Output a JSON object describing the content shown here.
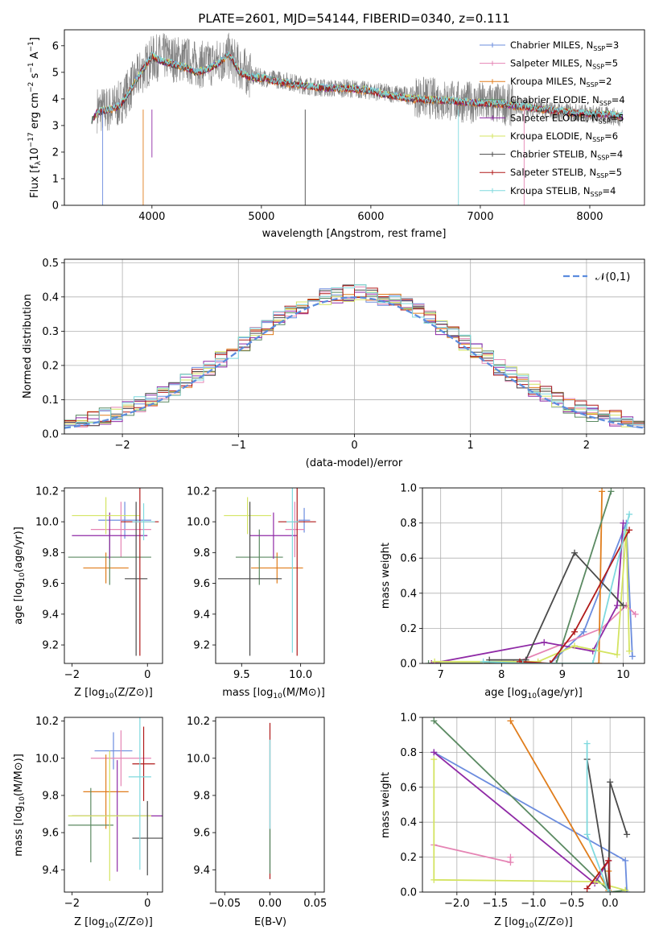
{
  "figure_title": "PLATE=2601, MJD=54144, FIBERID=0340, z=0.111",
  "palette": [
    "#6b8cde",
    "#e584b4",
    "#e07d1c",
    "#5b8a62",
    "#8f2aa6",
    "#d4e462",
    "#4a4a4a",
    "#b01a1a",
    "#7fd9de"
  ],
  "chart_data": [
    {
      "id": "spectrum",
      "type": "line",
      "title": "PLATE=2601, MJD=54144, FIBERID=0340, z=0.111",
      "xlabel": "wavelength [Angstrom, rest frame]",
      "ylabel": "Flux [f_λ 10^-17 erg cm^-2 s^-1 A^-1]",
      "xlim": [
        3200,
        8500
      ],
      "ylim": [
        0,
        6.6
      ],
      "xticks": [
        4000,
        5000,
        6000,
        7000,
        8000
      ],
      "yticks": [
        0,
        1,
        2,
        3,
        4,
        5,
        6
      ],
      "legend_position": "upper right",
      "data_trace": {
        "color": "#808080",
        "x": [
          3500,
          3600,
          3700,
          3800,
          3900,
          4000,
          4100,
          4200,
          4300,
          4400,
          4500,
          4600,
          4700,
          4800,
          4900,
          5000,
          5200,
          5400,
          5600,
          5800,
          6000,
          6200,
          6400,
          6600,
          6800,
          7000,
          7200,
          7400,
          7600,
          7800,
          8000,
          8200,
          8300
        ],
        "y": [
          3.6,
          3.6,
          3.8,
          4.4,
          5.0,
          5.5,
          5.6,
          5.5,
          5.5,
          5.3,
          5.3,
          5.4,
          5.6,
          5.2,
          4.9,
          4.8,
          4.7,
          4.5,
          4.4,
          4.4,
          4.3,
          4.2,
          4.1,
          4.0,
          3.9,
          3.85,
          3.8,
          3.7,
          3.6,
          3.5,
          3.45,
          3.35,
          3.3
        ]
      },
      "model": {
        "x": [
          3450,
          3500,
          3600,
          3700,
          3800,
          3900,
          4000,
          4100,
          4200,
          4300,
          4400,
          4500,
          4600,
          4700,
          4800,
          4900,
          5000,
          5200,
          5400,
          5600,
          5800,
          6000,
          6200,
          6400,
          6600,
          6800,
          7000,
          7200,
          7400,
          7600,
          7800,
          8000,
          8200,
          8300
        ],
        "y": [
          3.2,
          3.5,
          3.6,
          3.7,
          4.3,
          5.0,
          5.6,
          5.4,
          5.3,
          5.2,
          5.0,
          5.1,
          5.3,
          5.7,
          5.0,
          4.8,
          4.8,
          4.6,
          4.5,
          4.4,
          4.4,
          4.3,
          4.1,
          4.0,
          3.95,
          3.9,
          3.85,
          3.8,
          3.7,
          3.6,
          3.5,
          3.45,
          3.4,
          3.35
        ]
      },
      "series": [
        {
          "name": "Chabrier MILES, N_SSP=3",
          "color": "#6b8cde",
          "offset": 0.02
        },
        {
          "name": "Salpeter MILES, N_SSP=5",
          "color": "#e584b4",
          "offset": 0.0
        },
        {
          "name": "Kroupa MILES, N_SSP=2",
          "color": "#e07d1c",
          "offset": -0.03
        },
        {
          "name": "Chabrier ELODIE, N_SSP=4",
          "color": "#5b8a62",
          "offset": 0.01
        },
        {
          "name": "Salpeter ELODIE, N_SSP=5",
          "color": "#8f2aa6",
          "offset": -0.01
        },
        {
          "name": "Kroupa ELODIE, N_SSP=6",
          "color": "#d4e462",
          "offset": 0.03
        },
        {
          "name": "Chabrier STELIB, N_SSP=4",
          "color": "#4a4a4a",
          "offset": -0.02
        },
        {
          "name": "Salpeter STELIB, N_SSP=5",
          "color": "#b01a1a",
          "offset": 0.0
        },
        {
          "name": "Kroupa STELIB, N_SSP=4",
          "color": "#7fd9de",
          "offset": 0.04
        }
      ]
    },
    {
      "id": "residuals",
      "type": "histogram",
      "xlabel": "(data-model)/error",
      "ylabel": "Normed distribution",
      "xlim": [
        -2.5,
        2.5
      ],
      "ylim": [
        0,
        0.51
      ],
      "xticks": [
        -2,
        -1,
        0,
        1,
        2
      ],
      "yticks": [
        0.0,
        0.1,
        0.2,
        0.3,
        0.4,
        0.5
      ],
      "grid": true,
      "bin_width": 0.1,
      "reference_curve": {
        "name": "𝒩(0,1)",
        "color": "#5b8cde",
        "style": "dashed",
        "legend_position": "upper right"
      }
    },
    {
      "id": "age_vs_Z",
      "type": "errorbar",
      "xlabel": "Z [log10(Z/Z⊙)]",
      "ylabel": "age  [log10(age/yr)]",
      "xlim": [
        -2.2,
        0.4
      ],
      "ylim": [
        9.08,
        10.22
      ],
      "xticks": [
        -2,
        0
      ],
      "yticks": [
        9.2,
        9.4,
        9.6,
        9.8,
        10.0,
        10.2
      ],
      "points": [
        {
          "x": -0.6,
          "y": 10.01,
          "xerr": 0.7,
          "yerr": 0.12,
          "color": "#6b8cde"
        },
        {
          "x": -0.7,
          "y": 9.95,
          "xerr": 0.8,
          "yerr": 0.18,
          "color": "#e584b4"
        },
        {
          "x": -1.1,
          "y": 9.7,
          "xerr": 0.6,
          "yerr": 0.1,
          "color": "#e07d1c"
        },
        {
          "x": -1.0,
          "y": 9.77,
          "xerr": 1.1,
          "yerr": 0.18,
          "color": "#5b8a62"
        },
        {
          "x": -1.0,
          "y": 9.91,
          "xerr": 1.0,
          "yerr": 0.15,
          "color": "#8f2aa6"
        },
        {
          "x": -1.1,
          "y": 10.04,
          "xerr": 0.9,
          "yerr": 0.12,
          "color": "#d4e462"
        },
        {
          "x": -0.3,
          "y": 9.63,
          "xerr": 0.3,
          "yerr": 0.5,
          "color": "#4a4a4a"
        },
        {
          "x": -0.2,
          "y": 10.0,
          "xerr": 0.5,
          "yerr": 0.87,
          "color": "#b01a1a"
        },
        {
          "x": -0.1,
          "y": 10.0,
          "xerr": 0.3,
          "yerr": 0.12,
          "color": "#7fd9de"
        }
      ]
    },
    {
      "id": "age_vs_mass",
      "type": "errorbar",
      "xlabel": "mass [log10(M/M⊙)]",
      "ylabel": "",
      "xlim": [
        9.28,
        10.2
      ],
      "ylim": [
        9.08,
        10.22
      ],
      "xticks": [
        9.5,
        10.0
      ],
      "yticks": [
        9.2,
        9.4,
        9.6,
        9.8,
        10.0,
        10.2
      ],
      "points": [
        {
          "x": 10.03,
          "y": 10.01,
          "xerr": 0.05,
          "yerr": 0.08,
          "color": "#6b8cde"
        },
        {
          "x": 9.95,
          "y": 9.95,
          "xerr": 0.08,
          "yerr": 0.18,
          "color": "#e584b4"
        },
        {
          "x": 9.8,
          "y": 9.7,
          "xerr": 0.22,
          "yerr": 0.1,
          "color": "#e07d1c"
        },
        {
          "x": 9.65,
          "y": 9.77,
          "xerr": 0.2,
          "yerr": 0.18,
          "color": "#5b8a62"
        },
        {
          "x": 9.77,
          "y": 9.91,
          "xerr": 0.2,
          "yerr": 0.15,
          "color": "#8f2aa6"
        },
        {
          "x": 9.55,
          "y": 10.04,
          "xerr": 0.2,
          "yerr": 0.12,
          "color": "#d4e462"
        },
        {
          "x": 9.57,
          "y": 9.63,
          "xerr": 0.27,
          "yerr": 0.5,
          "color": "#4a4a4a"
        },
        {
          "x": 9.97,
          "y": 10.0,
          "xerr": 0.16,
          "yerr": 0.87,
          "color": "#b01a1a"
        },
        {
          "x": 9.93,
          "y": 10.0,
          "xerr": 0.05,
          "yerr": 0.85,
          "color": "#7fd9de"
        }
      ]
    },
    {
      "id": "massweight_vs_age",
      "type": "line",
      "xlabel": "age  [log10(age/yr)]",
      "ylabel": "mass weight",
      "xlim": [
        6.7,
        10.35
      ],
      "ylim": [
        0,
        1.0
      ],
      "xticks": [
        7,
        8,
        9,
        10
      ],
      "yticks": [
        0.0,
        0.2,
        0.4,
        0.6,
        0.8,
        1.0
      ],
      "grid": true,
      "series": [
        {
          "color": "#6b8cde",
          "x": [
            8.8,
            9.35,
            10.05,
            10.15
          ],
          "y": [
            0.0,
            0.18,
            0.8,
            0.04
          ]
        },
        {
          "color": "#e584b4",
          "x": [
            8.2,
            9.65,
            10.05,
            10.2
          ],
          "y": [
            0.0,
            0.2,
            0.33,
            0.28
          ]
        },
        {
          "color": "#e07d1c",
          "x": [
            6.85,
            9.6,
            9.65
          ],
          "y": [
            0.0,
            0.0,
            0.98
          ]
        },
        {
          "color": "#5b8a62",
          "x": [
            6.8,
            8.9,
            9.8
          ],
          "y": [
            0.0,
            0.0,
            0.98
          ]
        },
        {
          "color": "#8f2aa6",
          "x": [
            6.85,
            8.7,
            9.5,
            9.9,
            10.0
          ],
          "y": [
            0.0,
            0.12,
            0.07,
            0.33,
            0.8
          ]
        },
        {
          "color": "#d4e462",
          "x": [
            6.9,
            8.6,
            9.2,
            9.9,
            10.05,
            10.1
          ],
          "y": [
            0.01,
            0.01,
            0.1,
            0.05,
            0.76,
            0.07
          ]
        },
        {
          "color": "#4a4a4a",
          "x": [
            7.8,
            8.4,
            9.2,
            10.0
          ],
          "y": [
            0.02,
            0.02,
            0.63,
            0.33
          ]
        },
        {
          "color": "#b01a1a",
          "x": [
            8.3,
            8.8,
            9.2,
            10.1
          ],
          "y": [
            0.01,
            0.0,
            0.18,
            0.76
          ]
        },
        {
          "color": "#7fd9de",
          "x": [
            7.7,
            8.35,
            9.5,
            10.1
          ],
          "y": [
            0.01,
            0.0,
            0.0,
            0.85
          ]
        }
      ]
    },
    {
      "id": "mass_vs_Z",
      "type": "errorbar",
      "xlabel": "Z [log10(Z/Z⊙)]",
      "ylabel": "mass [log10(M/M⊙)]",
      "xlim": [
        -2.2,
        0.4
      ],
      "ylim": [
        9.28,
        10.22
      ],
      "xticks": [
        -2,
        0
      ],
      "yticks": [
        9.4,
        9.6,
        9.8,
        10.0,
        10.2
      ],
      "points": [
        {
          "x": -0.9,
          "y": 10.04,
          "xerr": 0.5,
          "yerr": 0.1,
          "color": "#6b8cde"
        },
        {
          "x": -0.7,
          "y": 10.0,
          "xerr": 0.8,
          "yerr": 0.15,
          "color": "#e584b4"
        },
        {
          "x": -1.1,
          "y": 9.82,
          "xerr": 0.6,
          "yerr": 0.2,
          "color": "#e07d1c"
        },
        {
          "x": -1.5,
          "y": 9.64,
          "xerr": 0.6,
          "yerr": 0.2,
          "color": "#5b8a62"
        },
        {
          "x": -0.8,
          "y": 9.69,
          "xerr": 1.2,
          "yerr": 0.3,
          "color": "#8f2aa6"
        },
        {
          "x": -1.0,
          "y": 9.69,
          "xerr": 1.1,
          "yerr": 0.35,
          "color": "#d4e462"
        },
        {
          "x": 0.0,
          "y": 9.57,
          "xerr": 0.4,
          "yerr": 0.2,
          "color": "#4a4a4a"
        },
        {
          "x": -0.1,
          "y": 9.97,
          "xerr": 0.3,
          "yerr": 0.2,
          "color": "#b01a1a"
        },
        {
          "x": -0.2,
          "y": 9.9,
          "xerr": 0.3,
          "yerr": 0.5,
          "color": "#7fd9de"
        }
      ]
    },
    {
      "id": "mass_vs_EBV",
      "type": "errorbar",
      "xlabel": "E(B-V)",
      "ylabel": "",
      "xlim": [
        -0.06,
        0.06
      ],
      "ylim": [
        9.28,
        10.22
      ],
      "xticks": [
        -0.05,
        0.0,
        0.05
      ],
      "yticks": [
        9.4,
        9.6,
        9.8,
        10.0,
        10.2
      ],
      "points": [
        {
          "x": 0.0,
          "y": 9.77,
          "xerr": 0.0,
          "yerr": 0.42,
          "color": "#b01a1a"
        },
        {
          "x": 0.0,
          "y": 9.74,
          "xerr": 0.0,
          "yerr": 0.36,
          "color": "#7fd9de"
        },
        {
          "x": 0.0,
          "y": 9.5,
          "xerr": 0.0,
          "yerr": 0.12,
          "color": "#5b8a62"
        }
      ]
    },
    {
      "id": "massweight_vs_Z",
      "type": "line",
      "xlabel": "Z [log10(Z/Z⊙)]",
      "ylabel": "mass weight",
      "xlim": [
        -2.45,
        0.45
      ],
      "ylim": [
        0,
        1.0
      ],
      "xticks": [
        -2.0,
        -1.5,
        -1.0,
        -0.5,
        0.0
      ],
      "yticks": [
        0.0,
        0.2,
        0.4,
        0.6,
        0.8,
        1.0
      ],
      "grid": true,
      "series": [
        {
          "color": "#6b8cde",
          "x": [
            -2.3,
            0.2,
            0.22,
            0.2
          ],
          "y": [
            0.8,
            0.18,
            0.0,
            0.0
          ]
        },
        {
          "color": "#e584b4",
          "x": [
            -2.3,
            -1.3,
            -1.3
          ],
          "y": [
            0.27,
            0.17,
            0.2
          ]
        },
        {
          "color": "#e07d1c",
          "x": [
            -1.3,
            -0.02,
            -0.02
          ],
          "y": [
            0.98,
            0.01,
            0.12
          ]
        },
        {
          "color": "#5b8a62",
          "x": [
            -2.3,
            0.0,
            0.2
          ],
          "y": [
            0.98,
            0.0,
            0.01
          ]
        },
        {
          "color": "#8f2aa6",
          "x": [
            -2.3,
            -0.2,
            -0.02
          ],
          "y": [
            0.8,
            0.05,
            0.18
          ]
        },
        {
          "color": "#d4e462",
          "x": [
            -2.3,
            -2.3,
            -0.2,
            0.2
          ],
          "y": [
            0.76,
            0.07,
            0.06,
            0.01
          ]
        },
        {
          "color": "#4a4a4a",
          "x": [
            -0.3,
            -0.02,
            0.0,
            0.22
          ],
          "y": [
            0.76,
            0.0,
            0.63,
            0.33
          ]
        },
        {
          "color": "#b01a1a",
          "x": [
            -0.3,
            -0.02,
            0.0
          ],
          "y": [
            0.02,
            0.18,
            0.0
          ]
        },
        {
          "color": "#7fd9de",
          "x": [
            -0.3,
            -0.3,
            -0.02,
            0.0
          ],
          "y": [
            0.85,
            0.33,
            0.0,
            0.0
          ]
        }
      ]
    }
  ]
}
